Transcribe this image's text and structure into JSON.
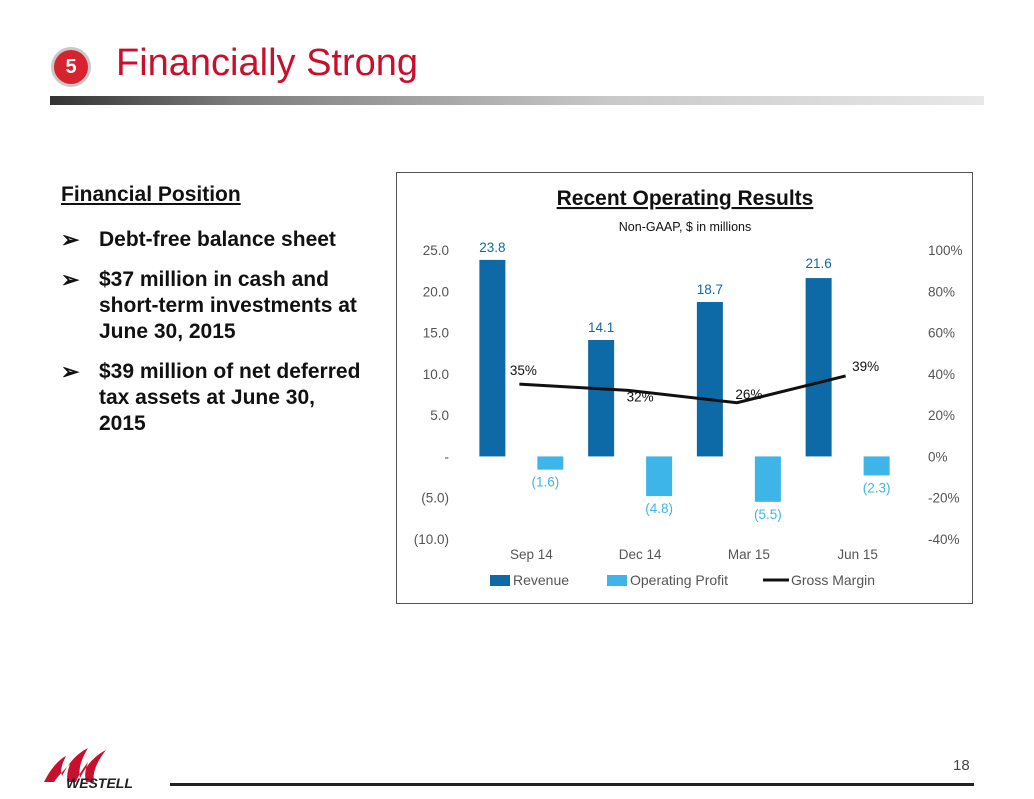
{
  "slide": {
    "badge": "5",
    "title": "Financially Strong",
    "page_number": "18",
    "logo_text": "WESTELL"
  },
  "left_panel": {
    "heading": "Financial Position",
    "bullets": [
      "Debt-free balance sheet",
      "$37 million in cash and short-term investments at June 30, 2015",
      "$39 million of net deferred tax assets at June 30, 2015"
    ]
  },
  "colors": {
    "revenue": "#0e6aa6",
    "operating_profit": "#3db5e8",
    "gross_margin": "#111111",
    "title_red": "#c8102e"
  },
  "chart_data": {
    "type": "bar",
    "title": "Recent Operating Results",
    "subtitle": "Non-GAAP, $ in millions",
    "categories": [
      "Sep 14",
      "Dec 14",
      "Mar 15",
      "Jun 15"
    ],
    "y_left": {
      "ylim": [
        -10,
        25
      ],
      "ticks": [
        25,
        20,
        15,
        10,
        5,
        0,
        -5,
        -10
      ],
      "tick_labels": [
        "25.0",
        "20.0",
        "15.0",
        "10.0",
        "5.0",
        "-",
        "(5.0)",
        "(10.0)"
      ]
    },
    "y_right": {
      "ylim": [
        -40,
        100
      ],
      "ticks": [
        100,
        80,
        60,
        40,
        20,
        0,
        -20,
        -40
      ],
      "tick_labels": [
        "100%",
        "80%",
        "60%",
        "40%",
        "20%",
        "0%",
        "-20%",
        "-40%"
      ]
    },
    "series": [
      {
        "name": "Revenue",
        "type": "bar",
        "axis": "left",
        "values": [
          23.8,
          14.1,
          18.7,
          21.6
        ],
        "labels": [
          "23.8",
          "14.1",
          "18.7",
          "21.6"
        ]
      },
      {
        "name": "Operating Profit",
        "type": "bar",
        "axis": "left",
        "values": [
          -1.6,
          -4.8,
          -5.5,
          -2.3
        ],
        "labels": [
          "(1.6)",
          "(4.8)",
          "(5.5)",
          "(2.3)"
        ]
      },
      {
        "name": "Gross Margin",
        "type": "line",
        "axis": "right",
        "values": [
          35,
          32,
          26,
          39
        ],
        "labels": [
          "35%",
          "32%",
          "26%",
          "39%"
        ]
      }
    ],
    "legend": "bottom",
    "grid": false
  }
}
